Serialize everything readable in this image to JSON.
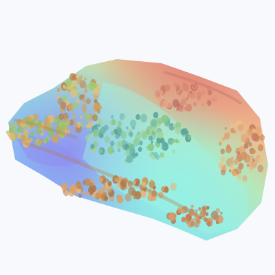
{
  "scene": {
    "background_color": "#f7f9fd",
    "colors": {
      "low": "#8f8cf2",
      "low_mid": "#74c8f0",
      "mid": "#86e4d6",
      "mid_high": "#c6df7e",
      "high": "#eeaa77",
      "peak": "#dc7f74"
    }
  }
}
